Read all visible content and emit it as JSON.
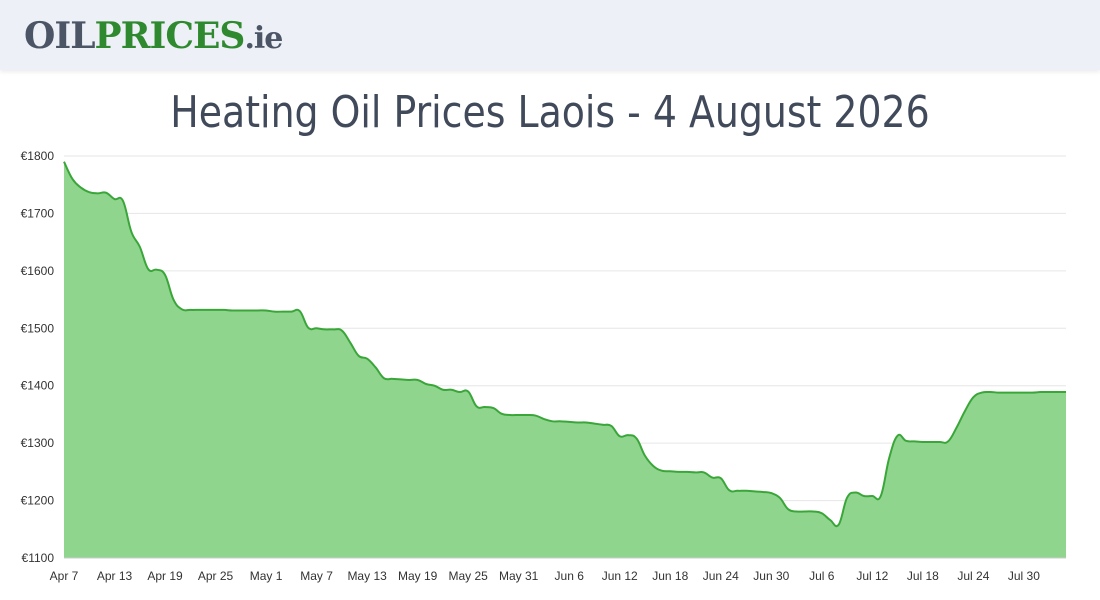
{
  "header": {
    "logo_part1": "OIL",
    "logo_part2": "PRICES",
    "logo_part3": ".ie"
  },
  "page_title": "Heating Oil Prices Laois - 4 August 2026",
  "colors": {
    "area_fill": "#90d58d",
    "line": "#3aa63a",
    "grid": "#e6e6e6"
  },
  "chart_data": {
    "type": "area",
    "title": "",
    "xlabel": "",
    "ylabel": "",
    "ylim": [
      1100,
      1800
    ],
    "yticks": [
      1100,
      1200,
      1300,
      1400,
      1500,
      1600,
      1700,
      1800
    ],
    "ytick_labels": [
      "€1100",
      "€1200",
      "€1300",
      "€1400",
      "€1500",
      "€1600",
      "€1700",
      "€1800"
    ],
    "grid": true,
    "legend": "none",
    "xlim": [
      "2026-04-07",
      "2026-08-04"
    ],
    "xticks": [
      "2026-04-07",
      "2026-04-13",
      "2026-04-19",
      "2026-04-25",
      "2026-05-01",
      "2026-05-07",
      "2026-05-13",
      "2026-05-19",
      "2026-05-25",
      "2026-05-31",
      "2026-06-06",
      "2026-06-12",
      "2026-06-18",
      "2026-06-24",
      "2026-06-30",
      "2026-07-06",
      "2026-07-12",
      "2026-07-18",
      "2026-07-24",
      "2026-07-30"
    ],
    "xtick_labels": [
      "Apr 7",
      "Apr 13",
      "Apr 19",
      "Apr 25",
      "May 1",
      "May 7",
      "May 13",
      "May 19",
      "May 25",
      "May 31",
      "Jun 6",
      "Jun 12",
      "Jun 18",
      "Jun 24",
      "Jun 30",
      "Jul 6",
      "Jul 12",
      "Jul 18",
      "Jul 24",
      "Jul 30"
    ],
    "series": [
      {
        "x": [
          "2026-04-07",
          "2026-04-08",
          "2026-04-09",
          "2026-04-10",
          "2026-04-11",
          "2026-04-12",
          "2026-04-13",
          "2026-04-14",
          "2026-04-15",
          "2026-04-16",
          "2026-04-17",
          "2026-04-18",
          "2026-04-19",
          "2026-04-20",
          "2026-04-21",
          "2026-04-22",
          "2026-04-23",
          "2026-04-24",
          "2026-04-25",
          "2026-04-26",
          "2026-04-27",
          "2026-04-28",
          "2026-04-29",
          "2026-04-30",
          "2026-05-01",
          "2026-05-02",
          "2026-05-03",
          "2026-05-04",
          "2026-05-05",
          "2026-05-06",
          "2026-05-07",
          "2026-05-08",
          "2026-05-09",
          "2026-05-10",
          "2026-05-11",
          "2026-05-12",
          "2026-05-13",
          "2026-05-14",
          "2026-05-15",
          "2026-05-16",
          "2026-05-17",
          "2026-05-18",
          "2026-05-19",
          "2026-05-20",
          "2026-05-21",
          "2026-05-22",
          "2026-05-23",
          "2026-05-24",
          "2026-05-25",
          "2026-05-26",
          "2026-05-27",
          "2026-05-28",
          "2026-05-29",
          "2026-05-30",
          "2026-05-31",
          "2026-06-01",
          "2026-06-02",
          "2026-06-03",
          "2026-06-04",
          "2026-06-05",
          "2026-06-06",
          "2026-06-07",
          "2026-06-08",
          "2026-06-09",
          "2026-06-10",
          "2026-06-11",
          "2026-06-12",
          "2026-06-13",
          "2026-06-14",
          "2026-06-15",
          "2026-06-16",
          "2026-06-17",
          "2026-06-18",
          "2026-06-19",
          "2026-06-20",
          "2026-06-21",
          "2026-06-22",
          "2026-06-23",
          "2026-06-24",
          "2026-06-25",
          "2026-06-26",
          "2026-06-27",
          "2026-06-28",
          "2026-06-29",
          "2026-06-30",
          "2026-07-01",
          "2026-07-02",
          "2026-07-03",
          "2026-07-04",
          "2026-07-05",
          "2026-07-06",
          "2026-07-07",
          "2026-07-08",
          "2026-07-09",
          "2026-07-10",
          "2026-07-11",
          "2026-07-12",
          "2026-07-13",
          "2026-07-14",
          "2026-07-15",
          "2026-07-16",
          "2026-07-17",
          "2026-07-18",
          "2026-07-19",
          "2026-07-20",
          "2026-07-21",
          "2026-07-22",
          "2026-07-23",
          "2026-07-24",
          "2026-07-25",
          "2026-07-26",
          "2026-07-27",
          "2026-07-28",
          "2026-07-29",
          "2026-07-30",
          "2026-07-31",
          "2026-08-01",
          "2026-08-02",
          "2026-08-03",
          "2026-08-04"
        ],
        "y": [
          1790,
          1760,
          1745,
          1737,
          1735,
          1736,
          1725,
          1722,
          1668,
          1642,
          1603,
          1602,
          1593,
          1550,
          1533,
          1532,
          1532,
          1532,
          1532,
          1532,
          1531,
          1531,
          1531,
          1531,
          1531,
          1529,
          1529,
          1529,
          1530,
          1501,
          1500,
          1498,
          1498,
          1496,
          1475,
          1452,
          1447,
          1432,
          1413,
          1412,
          1411,
          1410,
          1410,
          1403,
          1400,
          1393,
          1393,
          1389,
          1390,
          1364,
          1363,
          1361,
          1351,
          1349,
          1349,
          1349,
          1348,
          1342,
          1338,
          1338,
          1337,
          1336,
          1336,
          1334,
          1332,
          1330,
          1312,
          1314,
          1308,
          1278,
          1260,
          1252,
          1251,
          1250,
          1250,
          1249,
          1249,
          1240,
          1239,
          1218,
          1217,
          1217,
          1216,
          1215,
          1213,
          1205,
          1185,
          1181,
          1181,
          1181,
          1178,
          1166,
          1158,
          1205,
          1214,
          1208,
          1208,
          1208,
          1274,
          1313,
          1304,
          1303,
          1302,
          1302,
          1302,
          1303,
          1327,
          1356,
          1380,
          1388,
          1389,
          1388,
          1388,
          1388,
          1388,
          1388,
          1389,
          1389,
          1389,
          1389
        ]
      }
    ]
  }
}
